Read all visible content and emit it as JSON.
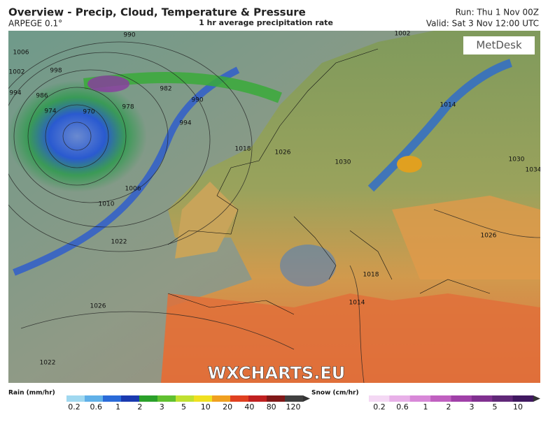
{
  "header": {
    "title": "Overview - Precip, Cloud, Temperature & Pressure",
    "model": "ARPEGE 0.1°",
    "product": "1 hr average precipitation rate",
    "run": "Run: Thu 1 Nov 00Z",
    "valid": "Valid: Sat 3 Nov 12:00 UTC"
  },
  "map": {
    "logo": "MetDesk",
    "watermark": "WXCHARTS.EU",
    "isobar_labels": [
      "990",
      "1006",
      "1002",
      "998",
      "994",
      "986",
      "982",
      "978",
      "974",
      "970",
      "990",
      "994",
      "1018",
      "1026",
      "1030",
      "1006",
      "1010",
      "1022",
      "1026",
      "1022",
      "1018",
      "1014",
      "1026",
      "1030",
      "1034",
      "1002",
      "1014"
    ]
  },
  "legend": {
    "rain_title": "Rain (mm/hr)",
    "rain_ticks": [
      0.2,
      0.6,
      1,
      2,
      3,
      5,
      10,
      20,
      40,
      80,
      120
    ],
    "snow_title": "Snow (cm/hr)",
    "snow_ticks": [
      0.2,
      0.6,
      1,
      2,
      3,
      5,
      10
    ]
  }
}
